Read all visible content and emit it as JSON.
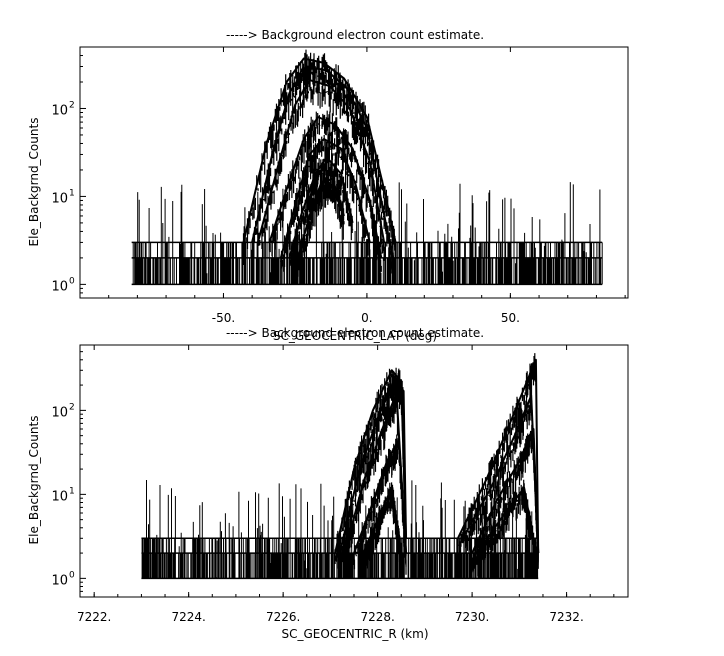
{
  "chart_data": [
    {
      "type": "scatter",
      "title": "-----> Background electron count estimate.",
      "xlabel": "SC_GEOCENTRIC_LAT (deg)",
      "ylabel": "Ele_Backgrnd_Counts",
      "xlim": [
        -100,
        91
      ],
      "ylim": [
        0.7,
        500
      ],
      "yscale": "log",
      "xticks": [
        -50,
        0,
        50
      ],
      "xtick_labels": [
        "-50.",
        "0.",
        "50."
      ],
      "yticks": [
        1,
        10,
        100
      ],
      "ytick_labels": [
        "10",
        "10",
        "10"
      ],
      "ytick_exponents": [
        "0",
        "1",
        "2"
      ],
      "grid": false,
      "series": [
        {
          "label_role": "noise floor",
          "x_range": [
            -82,
            82
          ],
          "y_values": [
            1,
            2,
            3
          ]
        },
        {
          "label_role": "ridge tracks",
          "tracks": [
            {
              "x": [
                -43,
                -35,
                -28,
                -22,
                -15,
                -8,
                0,
                6,
                10
              ],
              "y": [
                3,
                40,
                200,
                370,
                330,
                220,
                80,
                12,
                3
              ]
            },
            {
              "x": [
                -40,
                -33,
                -27,
                -21,
                -14,
                -7,
                0,
                5,
                9
              ],
              "y": [
                3,
                30,
                150,
                300,
                270,
                170,
                60,
                9,
                2
              ]
            },
            {
              "x": [
                -38,
                -31,
                -25,
                -20,
                -13,
                -6,
                1,
                6
              ],
              "y": [
                3,
                22,
                110,
                210,
                180,
                100,
                25,
                3
              ]
            },
            {
              "x": [
                -34,
                -28,
                -22,
                -17,
                -11,
                -5,
                1,
                5
              ],
              "y": [
                3,
                12,
                45,
                80,
                65,
                35,
                9,
                2
              ]
            },
            {
              "x": [
                -30,
                -25,
                -20,
                -15,
                -9,
                -4,
                1
              ],
              "y": [
                2,
                8,
                30,
                45,
                35,
                14,
                3
              ]
            },
            {
              "x": [
                -27,
                -23,
                -18,
                -14,
                -9,
                -5
              ],
              "y": [
                2,
                6,
                18,
                28,
                18,
                5
              ]
            },
            {
              "x": [
                -24,
                -20,
                -16,
                -12,
                -8
              ],
              "y": [
                2,
                6,
                14,
                16,
                6
              ]
            }
          ]
        }
      ]
    },
    {
      "type": "scatter",
      "title": "-----> Background electron count estimate.",
      "xlabel": "SC_GEOCENTRIC_R (km)",
      "ylabel": "Ele_Backgrnd_Counts",
      "xlim": [
        7221.7,
        7233.3
      ],
      "ylim": [
        0.6,
        600
      ],
      "yscale": "log",
      "xticks": [
        7222,
        7224,
        7226,
        7228,
        7230,
        7232
      ],
      "xtick_labels": [
        "7222.",
        "7224.",
        "7226.",
        "7228.",
        "7230.",
        "7232."
      ],
      "yticks": [
        1,
        10,
        100
      ],
      "ytick_labels": [
        "10",
        "10",
        "10"
      ],
      "ytick_exponents": [
        "0",
        "1",
        "2"
      ],
      "grid": false,
      "series": [
        {
          "label_role": "noise floor",
          "x_range": [
            7223,
            7231.4
          ],
          "y_values": [
            1,
            2,
            3
          ]
        },
        {
          "label_role": "ridge tracks",
          "tracks": [
            {
              "x": [
                7227.1,
                7227.5,
                7227.9,
                7228.3,
                7228.5,
                7228.6
              ],
              "y": [
                2,
                20,
                100,
                300,
                220,
                3
              ]
            },
            {
              "x": [
                7227.2,
                7227.6,
                7228.0,
                7228.35,
                7228.55,
                7228.6
              ],
              "y": [
                2,
                18,
                80,
                230,
                170,
                3
              ]
            },
            {
              "x": [
                7227.3,
                7227.7,
                7228.1,
                7228.4,
                7228.6
              ],
              "y": [
                2,
                14,
                60,
                160,
                2
              ]
            },
            {
              "x": [
                7227.5,
                7227.9,
                7228.2,
                7228.45,
                7228.6
              ],
              "y": [
                2,
                8,
                25,
                45,
                2
              ]
            },
            {
              "x": [
                7227.7,
                7228.0,
                7228.3,
                7228.5
              ],
              "y": [
                2,
                5,
                12,
                2
              ]
            },
            {
              "x": [
                7229.7,
                7230.3,
                7230.8,
                7231.2,
                7231.35,
                7231.4
              ],
              "y": [
                3,
                15,
                70,
                250,
                400,
                2
              ]
            },
            {
              "x": [
                7229.8,
                7230.4,
                7230.9,
                7231.25,
                7231.4
              ],
              "y": [
                3,
                12,
                50,
                150,
                2
              ]
            },
            {
              "x": [
                7230.0,
                7230.5,
                7231.0,
                7231.3,
                7231.4
              ],
              "y": [
                2,
                8,
                25,
                60,
                2
              ]
            },
            {
              "x": [
                7230.1,
                7230.6,
                7231.1,
                7231.35
              ],
              "y": [
                2,
                5,
                12,
                2
              ]
            }
          ]
        }
      ]
    }
  ]
}
